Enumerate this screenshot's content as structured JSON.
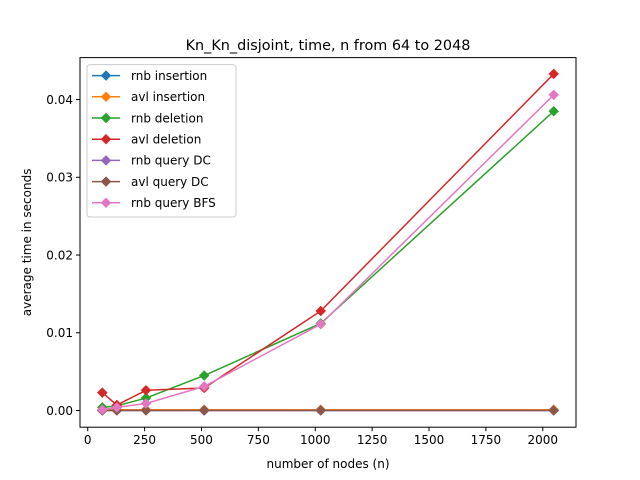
{
  "chart_data": {
    "type": "line",
    "title": "Kn_Kn_disjoint, time, n from 64 to 2048",
    "xlabel": "number of nodes (n)",
    "ylabel": "average time in seconds",
    "xlim": [
      -34,
      2146
    ],
    "ylim": [
      -0.00215,
      0.0454
    ],
    "xticks": [
      0,
      250,
      500,
      750,
      1000,
      1250,
      1500,
      1750,
      2000
    ],
    "xtick_labels": [
      "0",
      "250",
      "500",
      "750",
      "1000",
      "1250",
      "1500",
      "1750",
      "2000"
    ],
    "yticks": [
      0.0,
      0.01,
      0.02,
      0.03,
      0.04
    ],
    "ytick_labels": [
      "0.00",
      "0.01",
      "0.02",
      "0.03",
      "0.04"
    ],
    "grid": false,
    "legend_position": "top-left",
    "marker": "diamond",
    "x": [
      64,
      128,
      256,
      512,
      1024,
      2048
    ],
    "series": [
      {
        "name": "rnb insertion",
        "color": "#1f77b4",
        "values": [
          0.0001,
          0.0001,
          0.0001,
          0.0001,
          0.0001,
          0.0001
        ]
      },
      {
        "name": "avl insertion",
        "color": "#ff7f0e",
        "values": [
          0.0001,
          0.0001,
          0.0001,
          0.0001,
          0.0001,
          0.0001
        ]
      },
      {
        "name": "rnb deletion",
        "color": "#2ca02c",
        "values": [
          0.0004,
          0.0006,
          0.0016,
          0.0045,
          0.0112,
          0.0385
        ]
      },
      {
        "name": "avl deletion",
        "color": "#d62728",
        "values": [
          0.0023,
          0.0007,
          0.0026,
          0.0029,
          0.0128,
          0.0433
        ]
      },
      {
        "name": "rnb query DC",
        "color": "#9467bd",
        "values": [
          0.0,
          0.0,
          0.0,
          0.0,
          0.0,
          0.0
        ]
      },
      {
        "name": "avl query DC",
        "color": "#8c564b",
        "values": [
          0.0,
          0.0,
          0.0,
          0.0,
          0.0,
          0.0
        ]
      },
      {
        "name": "rnb query BFS",
        "color": "#e377c2",
        "values": [
          0.0001,
          0.0004,
          0.0009,
          0.0031,
          0.0111,
          0.0406
        ]
      }
    ]
  }
}
